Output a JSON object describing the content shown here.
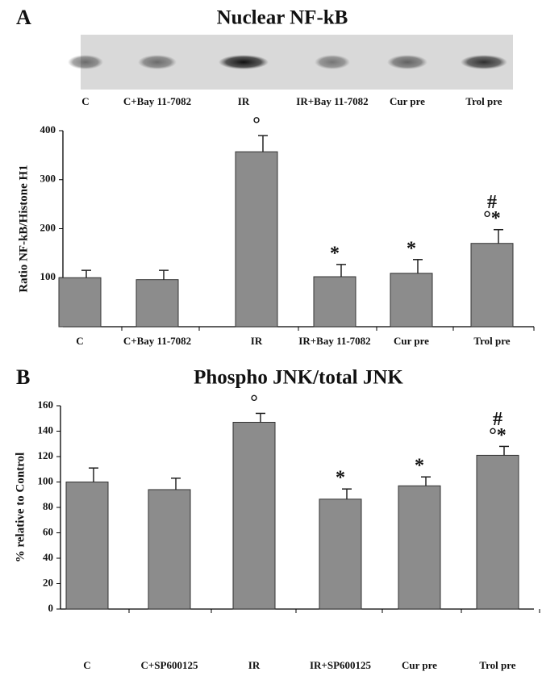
{
  "chart_data": [
    {
      "type": "bar",
      "panel": "A",
      "title": "Nuclear NF-kB",
      "ylabel": "Ratio NF-kB/Histone H1",
      "blot_labels": [
        "C",
        "C+Bay 11-7082",
        "IR",
        "IR+Bay 11-7082",
        "Cur pre",
        "Trol pre"
      ],
      "categories": [
        "C",
        "C+Bay 11-7082",
        "IR",
        "IR+Bay 11-7082",
        "Cur pre",
        "Trol pre"
      ],
      "values": [
        100,
        96,
        357,
        102,
        109,
        170
      ],
      "errors": [
        15,
        19,
        33,
        25,
        28,
        28
      ],
      "bar_labels": [
        null,
        null,
        [
          "°"
        ],
        [
          "*"
        ],
        [
          "*"
        ],
        [
          "#",
          "°*"
        ]
      ],
      "color": "#8c8c8c",
      "ylim": [
        0,
        400
      ],
      "yticks": [
        100,
        200,
        300,
        400
      ]
    },
    {
      "type": "bar",
      "panel": "B",
      "title": "Phospho JNK/total JNK",
      "ylabel": "% relative to Control",
      "categories": [
        "C",
        "C+SP600125",
        "IR",
        "IR+SP600125",
        "Cur pre",
        "Trol pre"
      ],
      "values": [
        100,
        94,
        147,
        86.5,
        97,
        121
      ],
      "errors": [
        11,
        9,
        7,
        8,
        7,
        7
      ],
      "bar_labels": [
        null,
        null,
        [
          "°"
        ],
        [
          "*"
        ],
        [
          "*"
        ],
        [
          "#",
          "°*"
        ]
      ],
      "color": "#8c8c8c",
      "ylim": [
        0,
        160
      ],
      "yticks": [
        0,
        20,
        40,
        60,
        80,
        100,
        120,
        140,
        160
      ]
    }
  ]
}
